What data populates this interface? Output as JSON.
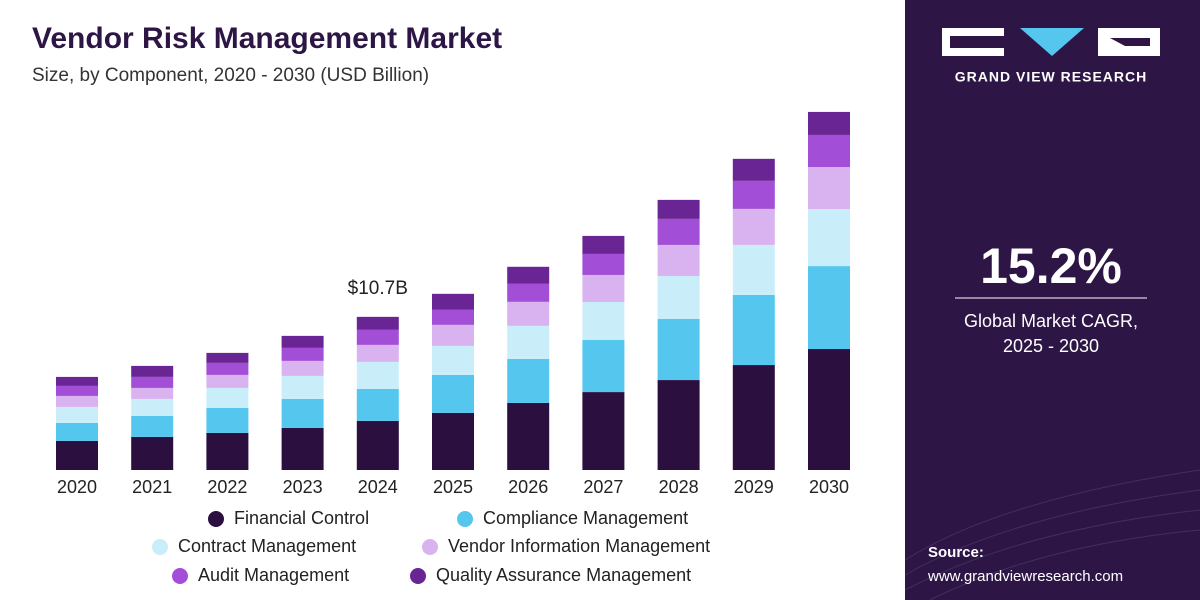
{
  "chart_data": {
    "type": "stacked_bar",
    "title": "Vendor Risk Management Market",
    "subtitle": "Size, by Component, 2020 - 2030 (USD Billion)",
    "categories": [
      "2020",
      "2021",
      "2022",
      "2023",
      "2024",
      "2025",
      "2026",
      "2027",
      "2028",
      "2029",
      "2030"
    ],
    "series": [
      {
        "name": "Financial Control",
        "color": "#2b0f3f",
        "values": [
          2.03,
          2.31,
          2.59,
          2.94,
          3.43,
          3.99,
          4.69,
          5.45,
          6.29,
          7.34,
          8.46
        ]
      },
      {
        "name": "Compliance Management",
        "color": "#55c7ef",
        "values": [
          1.26,
          1.47,
          1.75,
          2.03,
          2.24,
          2.66,
          3.08,
          3.64,
          4.27,
          4.9,
          5.8
        ]
      },
      {
        "name": "Contract Management",
        "color": "#c9eefa",
        "values": [
          1.12,
          1.19,
          1.4,
          1.61,
          1.89,
          2.03,
          2.31,
          2.66,
          3.01,
          3.5,
          3.99
        ]
      },
      {
        "name": "Vendor Information Management",
        "color": "#d9b3ef",
        "values": [
          0.77,
          0.77,
          0.91,
          1.05,
          1.19,
          1.47,
          1.68,
          1.89,
          2.17,
          2.52,
          2.94
        ]
      },
      {
        "name": "Audit Management",
        "color": "#a34ed6",
        "values": [
          0.7,
          0.77,
          0.84,
          0.91,
          1.05,
          1.05,
          1.26,
          1.47,
          1.82,
          1.96,
          2.24
        ]
      },
      {
        "name": "Quality Assurance Management",
        "color": "#6a2594",
        "values": [
          0.63,
          0.77,
          0.7,
          0.84,
          0.91,
          1.12,
          1.19,
          1.26,
          1.33,
          1.54,
          1.61
        ]
      }
    ],
    "total_label": {
      "category": "2024",
      "value": 10.7,
      "label": "$10.7B"
    }
  },
  "sidebar": {
    "brand": "GRAND VIEW RESEARCH",
    "cagr": "15.2%",
    "cagr_caption_1": "Global Market CAGR,",
    "cagr_caption_2": "2025 - 2030",
    "source_title": "Source:",
    "source_url": "www.grandviewresearch.com"
  }
}
